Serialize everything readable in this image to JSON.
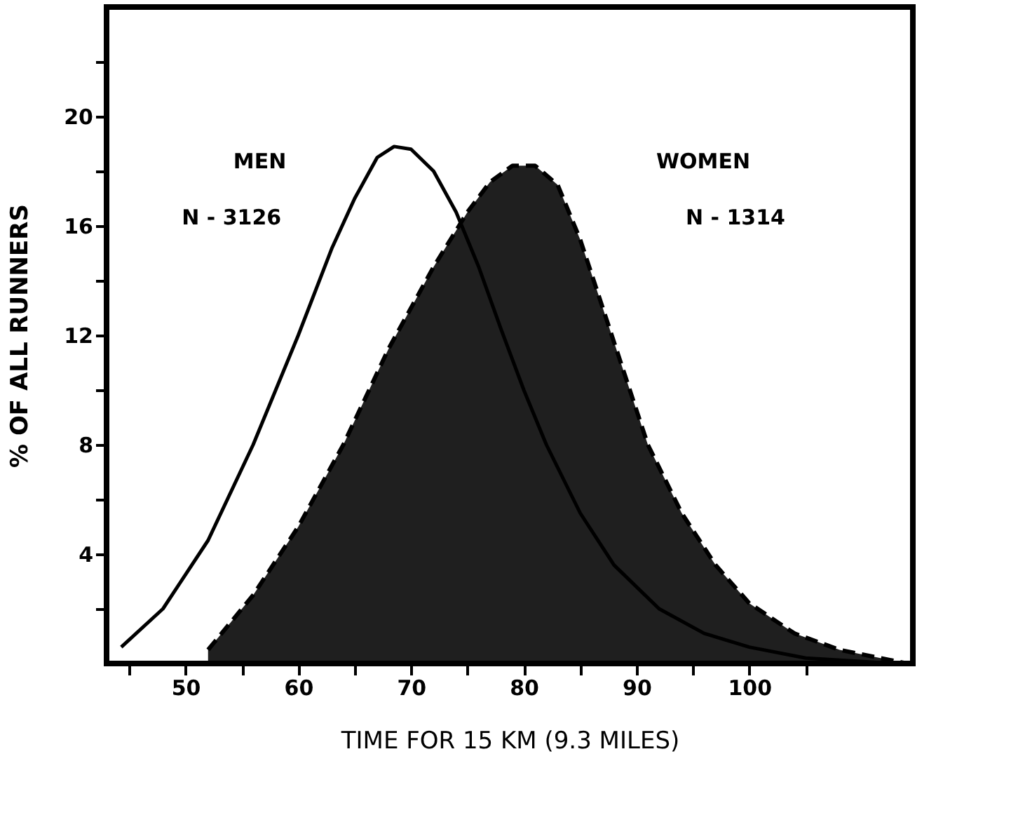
{
  "chart_data": {
    "type": "line",
    "xlabel": "TIME FOR 15 KM (9.3 MILES)",
    "ylabel": "% OF ALL RUNNERS",
    "xlim": [
      43,
      114.5
    ],
    "ylim": [
      0,
      24
    ],
    "xticks": [
      {
        "value": 45,
        "label": null
      },
      50,
      {
        "value": 55,
        "label": null
      },
      60,
      {
        "value": 65,
        "label": null
      },
      70,
      {
        "value": 75,
        "label": null
      },
      80,
      {
        "value": 85,
        "label": null
      },
      90,
      {
        "value": 95,
        "label": null
      },
      100,
      {
        "value": 105,
        "label": null
      }
    ],
    "yticks": [
      {
        "value": 2,
        "label": null
      },
      4,
      {
        "value": 6,
        "label": null
      },
      8,
      {
        "value": 10,
        "label": null
      },
      12,
      {
        "value": 14,
        "label": null
      },
      16,
      {
        "value": 18,
        "label": null
      },
      20,
      {
        "value": 22,
        "label": null
      }
    ],
    "grid": false,
    "series": [
      {
        "type": "area",
        "color": "#000000",
        "line_style": "dashed",
        "x": [
          52,
          56,
          60,
          64,
          68,
          72,
          75,
          77,
          79,
          81,
          83,
          85,
          87,
          89,
          91,
          94,
          97,
          100,
          104,
          108,
          114
        ],
        "values": [
          0.5,
          2.5,
          5,
          8,
          11.5,
          14.5,
          16.5,
          17.6,
          18.2,
          18.2,
          17.5,
          15.5,
          13,
          10.5,
          8,
          5.5,
          3.6,
          2.2,
          1.1,
          0.5,
          0
        ]
      },
      {
        "color": "#000000",
        "line_style": "solid",
        "x": [
          44.3,
          48,
          52,
          56,
          60,
          63,
          65,
          67,
          68.5,
          70,
          72,
          74,
          76,
          78,
          80,
          82,
          85,
          88,
          92,
          96,
          100,
          105,
          113
        ],
        "values": [
          0.6,
          2,
          4.5,
          8,
          12,
          15.2,
          17,
          18.5,
          18.9,
          18.8,
          18,
          16.5,
          14.5,
          12.2,
          10,
          8,
          5.5,
          3.6,
          2,
          1.1,
          0.6,
          0.2,
          0
        ]
      }
    ],
    "annotations": [
      "MEN",
      "N - 3126",
      "WOMEN",
      "N - 1314"
    ]
  }
}
